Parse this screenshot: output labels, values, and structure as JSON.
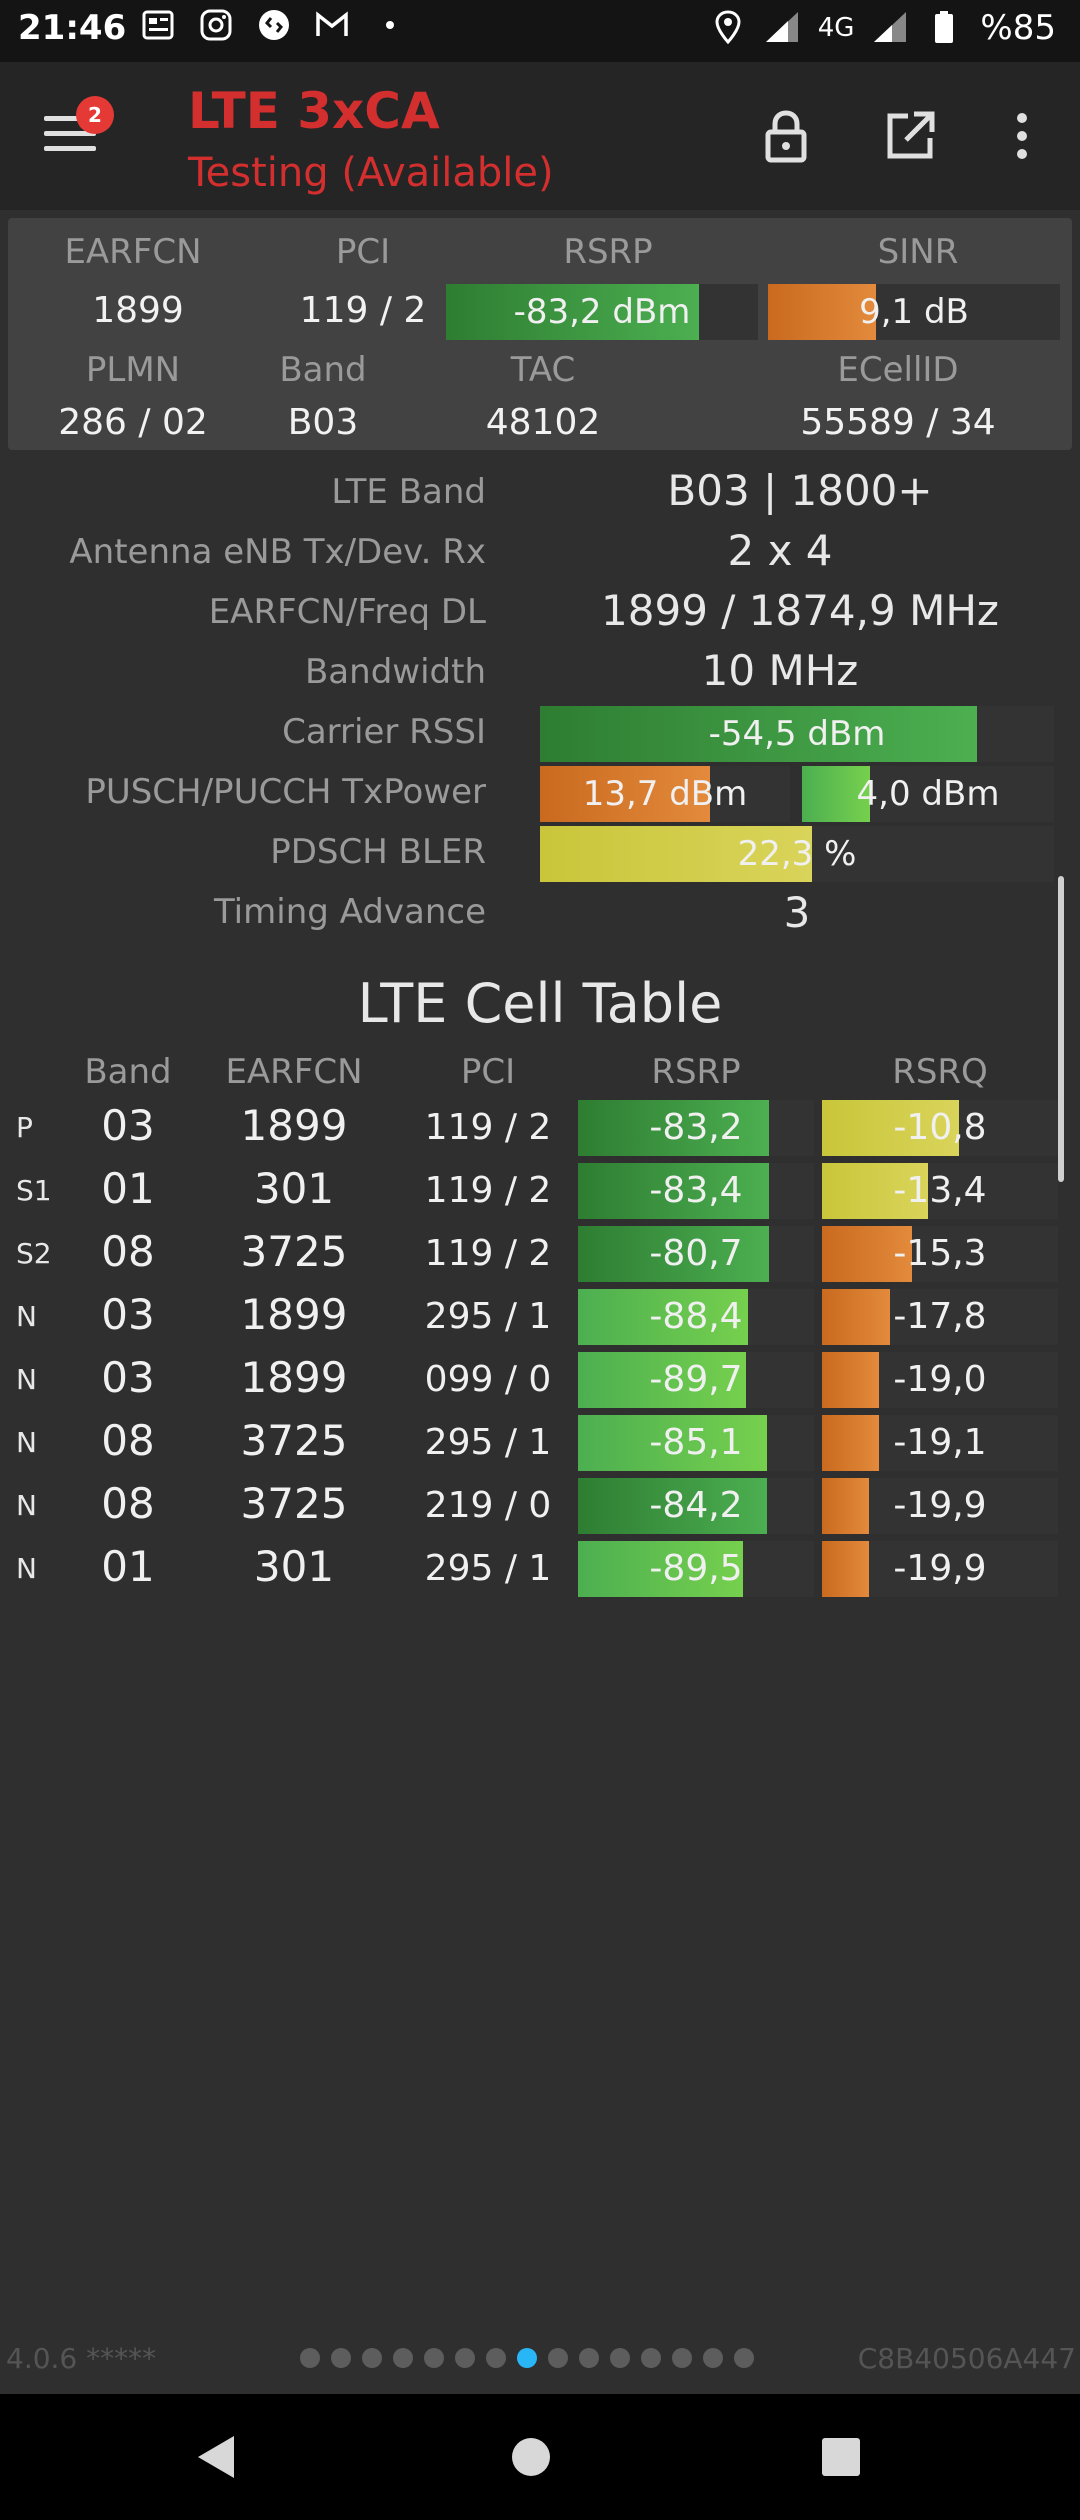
{
  "status_bar": {
    "time": "21:46",
    "left_icons": [
      "news-icon",
      "instagram-icon",
      "shazam-icon",
      "gmail-icon",
      "dot-icon"
    ],
    "network": "4G",
    "battery": "%85"
  },
  "app_bar": {
    "badge": "2",
    "title": "LTE 3xCA",
    "subtitle": "Testing (Available)"
  },
  "serving": {
    "labels": {
      "earfcn": "EARFCN",
      "pci": "PCI",
      "rsrp": "RSRP",
      "sinr": "SINR",
      "plmn": "PLMN",
      "band": "Band",
      "tac": "TAC",
      "ecellid": "ECellID"
    },
    "earfcn": "1899",
    "pci": "119 / 2",
    "rsrp": {
      "text": "-83,2 dBm",
      "fill": 0.81
    },
    "sinr": {
      "text": "9,1 dB",
      "fill": 0.37
    },
    "plmn": "286 / 02",
    "band": "B03",
    "tac": "48102",
    "ecellid": "55589 / 34"
  },
  "info": {
    "lte_band_label": "LTE Band",
    "lte_band": "B03 | 1800+",
    "antenna_label": "Antenna eNB Tx/Dev. Rx",
    "antenna": "2 x 4",
    "earfcn_freq_label": "EARFCN/Freq DL",
    "earfcn_freq": "1899 / 1874,9 MHz",
    "bandwidth_label": "Bandwidth",
    "bandwidth": "10 MHz",
    "carrier_rssi_label": "Carrier RSSI",
    "carrier_rssi": {
      "text": "-54,5 dBm",
      "fill": 0.85
    },
    "txpower_label": "PUSCH/PUCCH TxPower",
    "pusch": {
      "text": "13,7 dBm",
      "fill": 0.68
    },
    "pucch": {
      "text": "4,0 dBm",
      "fill": 0.27
    },
    "bler_label": "PDSCH BLER",
    "bler": {
      "text": "22,3 %",
      "fill": 0.53
    },
    "timing_advance_label": "Timing Advance",
    "timing_advance": "3"
  },
  "cell_table": {
    "title": "LTE Cell Table",
    "headers": {
      "band": "Band",
      "earfcn": "EARFCN",
      "pci": "PCI",
      "rsrp": "RSRP",
      "rsrq": "RSRQ"
    },
    "rows": [
      {
        "tag": "P",
        "band": "03",
        "earfcn": "1899",
        "pci": "119 / 2",
        "rsrp": "-83,2",
        "rsrp_fill": 0.81,
        "rsrp_color": "green",
        "rsrq": "-10,8",
        "rsrq_fill": 0.58,
        "rsrq_color": "yellow"
      },
      {
        "tag": "S1",
        "band": "01",
        "earfcn": "301",
        "pci": "119 / 2",
        "rsrp": "-83,4",
        "rsrp_fill": 0.81,
        "rsrp_color": "green",
        "rsrq": "-13,4",
        "rsrq_fill": 0.45,
        "rsrq_color": "yellow"
      },
      {
        "tag": "S2",
        "band": "08",
        "earfcn": "3725",
        "pci": "119 / 2",
        "rsrp": "-80,7",
        "rsrp_fill": 0.81,
        "rsrp_color": "green",
        "rsrq": "-15,3",
        "rsrq_fill": 0.38,
        "rsrq_color": "orange"
      },
      {
        "tag": "N",
        "band": "03",
        "earfcn": "1899",
        "pci": "295 / 1",
        "rsrp": "-88,4",
        "rsrp_fill": 0.72,
        "rsrp_color": "lgreen",
        "rsrq": "-17,8",
        "rsrq_fill": 0.29,
        "rsrq_color": "orange"
      },
      {
        "tag": "N",
        "band": "03",
        "earfcn": "1899",
        "pci": "099 / 0",
        "rsrp": "-89,7",
        "rsrp_fill": 0.71,
        "rsrp_color": "lgreen",
        "rsrq": "-19,0",
        "rsrq_fill": 0.24,
        "rsrq_color": "orange"
      },
      {
        "tag": "N",
        "band": "08",
        "earfcn": "3725",
        "pci": "295 / 1",
        "rsrp": "-85,1",
        "rsrp_fill": 0.8,
        "rsrp_color": "lgreen",
        "rsrq": "-19,1",
        "rsrq_fill": 0.24,
        "rsrq_color": "orange"
      },
      {
        "tag": "N",
        "band": "08",
        "earfcn": "3725",
        "pci": "219 / 0",
        "rsrp": "-84,2",
        "rsrp_fill": 0.8,
        "rsrp_color": "green",
        "rsrq": "-19,9",
        "rsrq_fill": 0.2,
        "rsrq_color": "orange"
      },
      {
        "tag": "N",
        "band": "01",
        "earfcn": "301",
        "pci": "295 / 1",
        "rsrp": "-89,5",
        "rsrp_fill": 0.7,
        "rsrp_color": "lgreen",
        "rsrq": "-19,9",
        "rsrq_fill": 0.2,
        "rsrq_color": "orange"
      }
    ]
  },
  "footer": {
    "version": "4.0.6 *****",
    "device_id": "C8B40506A447",
    "page_count": 15,
    "active_page": 7
  },
  "colors": {
    "accent_red": "#d32f2f",
    "page_dot_active": "#29b6f6"
  }
}
